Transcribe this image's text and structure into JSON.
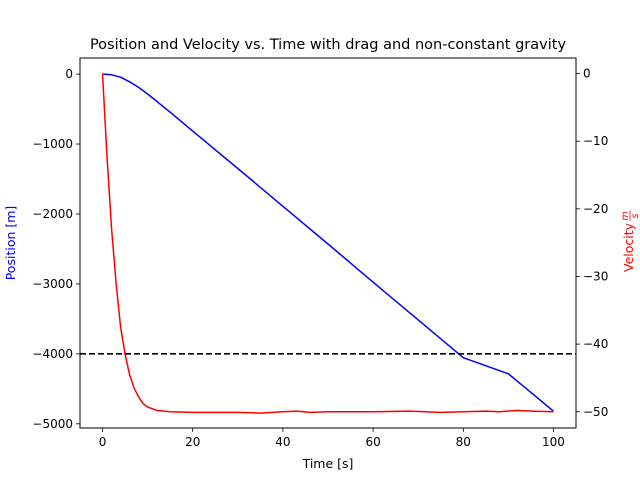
{
  "chart_data": {
    "type": "line",
    "title": "Position and Velocity vs. Time with drag and non-constant gravity",
    "xlabel": "Time [s]",
    "ylabel_left": "Position [m]",
    "ylabel_right": "Velocity",
    "ylabel_right_unit": {
      "numerator": "m",
      "denominator": "s"
    },
    "xlim": [
      -5,
      105
    ],
    "ylim_left": [
      -5060,
      230
    ],
    "ylim_right": [
      -52.4,
      2.3
    ],
    "xticks": [
      0,
      20,
      40,
      60,
      80,
      100
    ],
    "xtick_labels": [
      "0",
      "20",
      "40",
      "60",
      "80",
      "100"
    ],
    "yticks_left": [
      0,
      -1000,
      -2000,
      -3000,
      -4000,
      -5000
    ],
    "ytick_labels_left": [
      "0",
      "−1000",
      "−2000",
      "−3000",
      "−4000",
      "−5000"
    ],
    "yticks_right": [
      0,
      -10,
      -20,
      -30,
      -40,
      -50
    ],
    "ytick_labels_right": [
      "0",
      "−10",
      "−20",
      "−30",
      "−40",
      "−50"
    ],
    "grid": false,
    "colors": {
      "position": "#0000ff",
      "velocity": "#ff0000",
      "reference": "#000000",
      "position_label": "#0000ff",
      "velocity_label": "#ff0000"
    },
    "series": [
      {
        "axis": "left",
        "color": "#0000ff",
        "x": [
          0,
          2,
          4,
          6,
          8,
          10,
          15,
          20,
          30,
          40,
          50,
          60,
          70,
          80,
          90,
          100
        ],
        "y": [
          0,
          -10,
          -45,
          -110,
          -190,
          -285,
          -545,
          -815,
          -1350,
          -1890,
          -2430,
          -2975,
          -3515,
          -4055,
          -4285,
          -4820
        ]
      },
      {
        "axis": "right",
        "color": "#ff0000",
        "x": [
          0,
          1,
          2,
          3,
          4,
          5,
          6,
          7,
          8,
          9,
          10,
          12,
          15,
          20,
          30,
          35,
          40,
          43,
          46,
          50,
          60,
          68,
          75,
          80,
          85,
          88,
          92,
          95,
          100
        ],
        "y": [
          0,
          -12.5,
          -23,
          -31,
          -37.5,
          -41.5,
          -44.5,
          -46.5,
          -47.8,
          -48.8,
          -49.3,
          -49.8,
          -50.0,
          -50.1,
          -50.1,
          -50.2,
          -50.0,
          -49.9,
          -50.1,
          -50.0,
          -50.0,
          -49.9,
          -50.1,
          -50.0,
          -49.9,
          -50.0,
          -49.8,
          -49.9,
          -50.0
        ]
      },
      {
        "axis": "left",
        "color": "#000000",
        "style": "dashed",
        "y_constant": -4000
      }
    ]
  }
}
